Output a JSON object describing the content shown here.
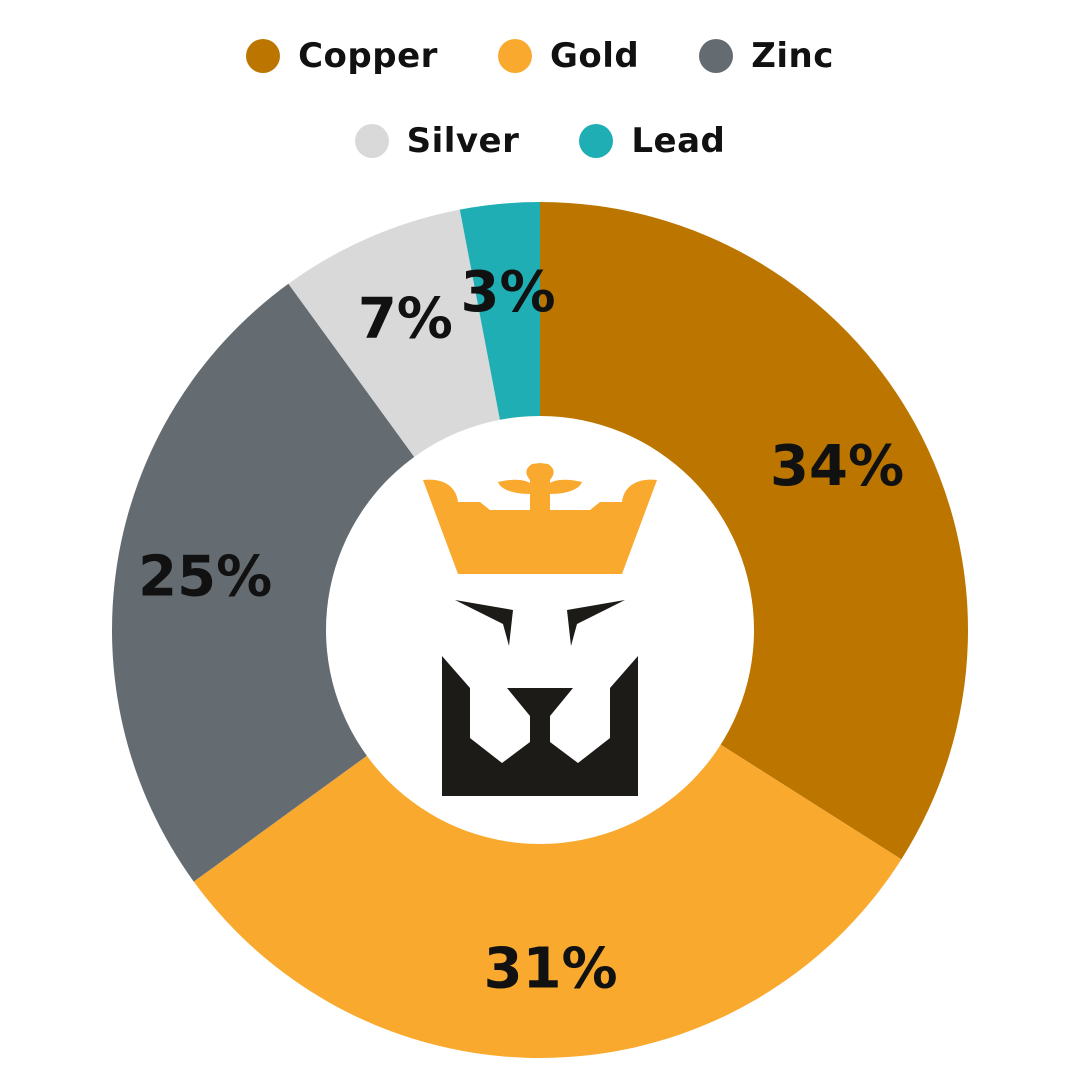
{
  "chart_data": {
    "type": "pie",
    "style": "donut",
    "categories": [
      "Copper",
      "Gold",
      "Zinc",
      "Silver",
      "Lead"
    ],
    "values": [
      34,
      31,
      25,
      7,
      3
    ],
    "data_labels": [
      "34%",
      "31%",
      "25%",
      "7%",
      "3%"
    ],
    "colors": [
      "#BC7600",
      "#F9AA2E",
      "#646C71",
      "#D9D9D9",
      "#1FAEB4"
    ],
    "legend_position": "top",
    "start_angle": "12 o'clock, clockwise",
    "center_logo": {
      "icon": "crowned-lion-logo-icon",
      "crown_color": "#F9AA2E",
      "face_color": "#1C1B18"
    }
  }
}
